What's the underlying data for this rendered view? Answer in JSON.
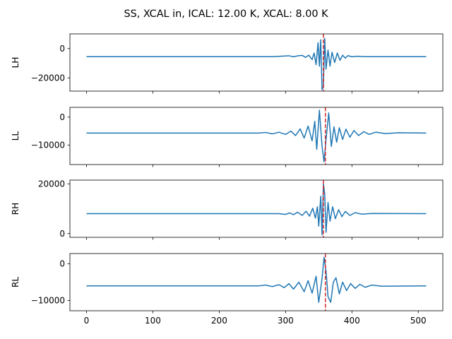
{
  "figure": {
    "title": "SS, XCAL in, ICAL: 12.00 K, XCAL: 8.00 K"
  },
  "chart_data": [
    {
      "type": "line",
      "ylabel": "LH",
      "xlim": [
        -25,
        537
      ],
      "ylim": [
        -29000,
        10000
      ],
      "xticks": [
        0,
        100,
        200,
        300,
        400,
        500
      ],
      "yticks": [
        0,
        -20000
      ],
      "ytick_labels": [
        "0",
        "−20000"
      ],
      "show_xtick_labels": false,
      "baseline": -5500,
      "marker_x": 357,
      "series": [
        {
          "color": "#1f77b4",
          "points": [
            [
              0,
              -5500
            ],
            [
              280,
              -5500
            ],
            [
              290,
              -5300
            ],
            [
              298,
              -5100
            ],
            [
              305,
              -4900
            ],
            [
              312,
              -5600
            ],
            [
              318,
              -5000
            ],
            [
              325,
              -4600
            ],
            [
              330,
              -6000
            ],
            [
              335,
              -4500
            ],
            [
              340,
              -7500
            ],
            [
              343,
              -3000
            ],
            [
              346,
              -11000
            ],
            [
              349,
              4000
            ],
            [
              351,
              -12000
            ],
            [
              353,
              6000
            ],
            [
              355,
              -28000
            ],
            [
              357,
              -26000
            ],
            [
              359,
              7000
            ],
            [
              361,
              -14000
            ],
            [
              364,
              -1000
            ],
            [
              367,
              -12000
            ],
            [
              370,
              -2500
            ],
            [
              374,
              -9500
            ],
            [
              378,
              -3000
            ],
            [
              382,
              -8000
            ],
            [
              386,
              -4500
            ],
            [
              390,
              -6500
            ],
            [
              394,
              -4800
            ],
            [
              400,
              -5600
            ],
            [
              408,
              -5200
            ],
            [
              420,
              -5500
            ],
            [
              512,
              -5500
            ]
          ]
        }
      ],
      "marker_color": "#d62728"
    },
    {
      "type": "line",
      "ylabel": "LL",
      "xlim": [
        -25,
        537
      ],
      "ylim": [
        -17000,
        3500
      ],
      "xticks": [
        0,
        100,
        200,
        300,
        400,
        500
      ],
      "yticks": [
        0,
        -10000
      ],
      "ytick_labels": [
        "0",
        "−10000"
      ],
      "show_xtick_labels": false,
      "baseline": -5700,
      "marker_x": 360,
      "series": [
        {
          "color": "#1f77b4",
          "points": [
            [
              0,
              -5700
            ],
            [
              260,
              -5700
            ],
            [
              270,
              -5500
            ],
            [
              280,
              -6000
            ],
            [
              290,
              -5400
            ],
            [
              300,
              -6200
            ],
            [
              308,
              -5000
            ],
            [
              315,
              -6600
            ],
            [
              322,
              -4200
            ],
            [
              328,
              -7500
            ],
            [
              334,
              -3200
            ],
            [
              340,
              -8500
            ],
            [
              344,
              -1500
            ],
            [
              347,
              -11500
            ],
            [
              351,
              2500
            ],
            [
              355,
              -10500
            ],
            [
              358,
              -16000
            ],
            [
              361,
              -8000
            ],
            [
              365,
              1500
            ],
            [
              369,
              -10500
            ],
            [
              373,
              -3500
            ],
            [
              377,
              -9000
            ],
            [
              381,
              -3800
            ],
            [
              386,
              -8000
            ],
            [
              391,
              -4300
            ],
            [
              397,
              -7200
            ],
            [
              403,
              -4800
            ],
            [
              410,
              -6600
            ],
            [
              418,
              -5200
            ],
            [
              426,
              -6200
            ],
            [
              436,
              -5400
            ],
            [
              450,
              -5900
            ],
            [
              470,
              -5600
            ],
            [
              512,
              -5700
            ]
          ]
        }
      ],
      "marker_color": "#d62728"
    },
    {
      "type": "line",
      "ylabel": "RH",
      "xlim": [
        -25,
        537
      ],
      "ylim": [
        -1500,
        21500
      ],
      "xticks": [
        0,
        100,
        200,
        300,
        400,
        500
      ],
      "yticks": [
        20000,
        0
      ],
      "ytick_labels": [
        "20000",
        "0"
      ],
      "show_xtick_labels": false,
      "baseline": 8000,
      "marker_x": 357,
      "series": [
        {
          "color": "#1f77b4",
          "points": [
            [
              0,
              8000
            ],
            [
              290,
              8000
            ],
            [
              300,
              7700
            ],
            [
              306,
              8300
            ],
            [
              312,
              7600
            ],
            [
              318,
              8600
            ],
            [
              325,
              7300
            ],
            [
              331,
              9000
            ],
            [
              336,
              7000
            ],
            [
              341,
              10200
            ],
            [
              345,
              6200
            ],
            [
              348,
              10800
            ],
            [
              350,
              3000
            ],
            [
              353,
              15000
            ],
            [
              355,
              -500
            ],
            [
              357,
              20000
            ],
            [
              359,
              16000
            ],
            [
              361,
              500
            ],
            [
              364,
              12500
            ],
            [
              367,
              5000
            ],
            [
              371,
              10800
            ],
            [
              375,
              6000
            ],
            [
              380,
              9600
            ],
            [
              385,
              6800
            ],
            [
              390,
              8900
            ],
            [
              397,
              7300
            ],
            [
              405,
              8400
            ],
            [
              415,
              7800
            ],
            [
              430,
              8100
            ],
            [
              512,
              8000
            ]
          ]
        }
      ],
      "marker_color": "#d62728"
    },
    {
      "type": "line",
      "ylabel": "RL",
      "xlim": [
        -25,
        537
      ],
      "ylim": [
        -12800,
        2800
      ],
      "xticks": [
        0,
        100,
        200,
        300,
        400,
        500
      ],
      "yticks": [
        0,
        -10000
      ],
      "ytick_labels": [
        "0",
        "−10000"
      ],
      "show_xtick_labels": true,
      "xtick_labels": [
        "0",
        "100",
        "200",
        "300",
        "400",
        "500"
      ],
      "baseline": -6000,
      "marker_x": 360,
      "series": [
        {
          "color": "#1f77b4",
          "points": [
            [
              0,
              -6000
            ],
            [
              260,
              -6000
            ],
            [
              270,
              -5800
            ],
            [
              280,
              -6200
            ],
            [
              290,
              -5700
            ],
            [
              298,
              -6500
            ],
            [
              305,
              -5400
            ],
            [
              312,
              -6900
            ],
            [
              320,
              -5000
            ],
            [
              328,
              -7600
            ],
            [
              334,
              -4600
            ],
            [
              340,
              -8000
            ],
            [
              346,
              -3400
            ],
            [
              350,
              -10500
            ],
            [
              355,
              -4000
            ],
            [
              358,
              1800
            ],
            [
              361,
              -2000
            ],
            [
              364,
              -9000
            ],
            [
              368,
              -10500
            ],
            [
              372,
              -5000
            ],
            [
              376,
              -3800
            ],
            [
              381,
              -8200
            ],
            [
              386,
              -5000
            ],
            [
              392,
              -7300
            ],
            [
              398,
              -5400
            ],
            [
              405,
              -6700
            ],
            [
              412,
              -5600
            ],
            [
              420,
              -6400
            ],
            [
              430,
              -5800
            ],
            [
              445,
              -6100
            ],
            [
              512,
              -6000
            ]
          ]
        }
      ],
      "marker_color": "#d62728"
    }
  ]
}
